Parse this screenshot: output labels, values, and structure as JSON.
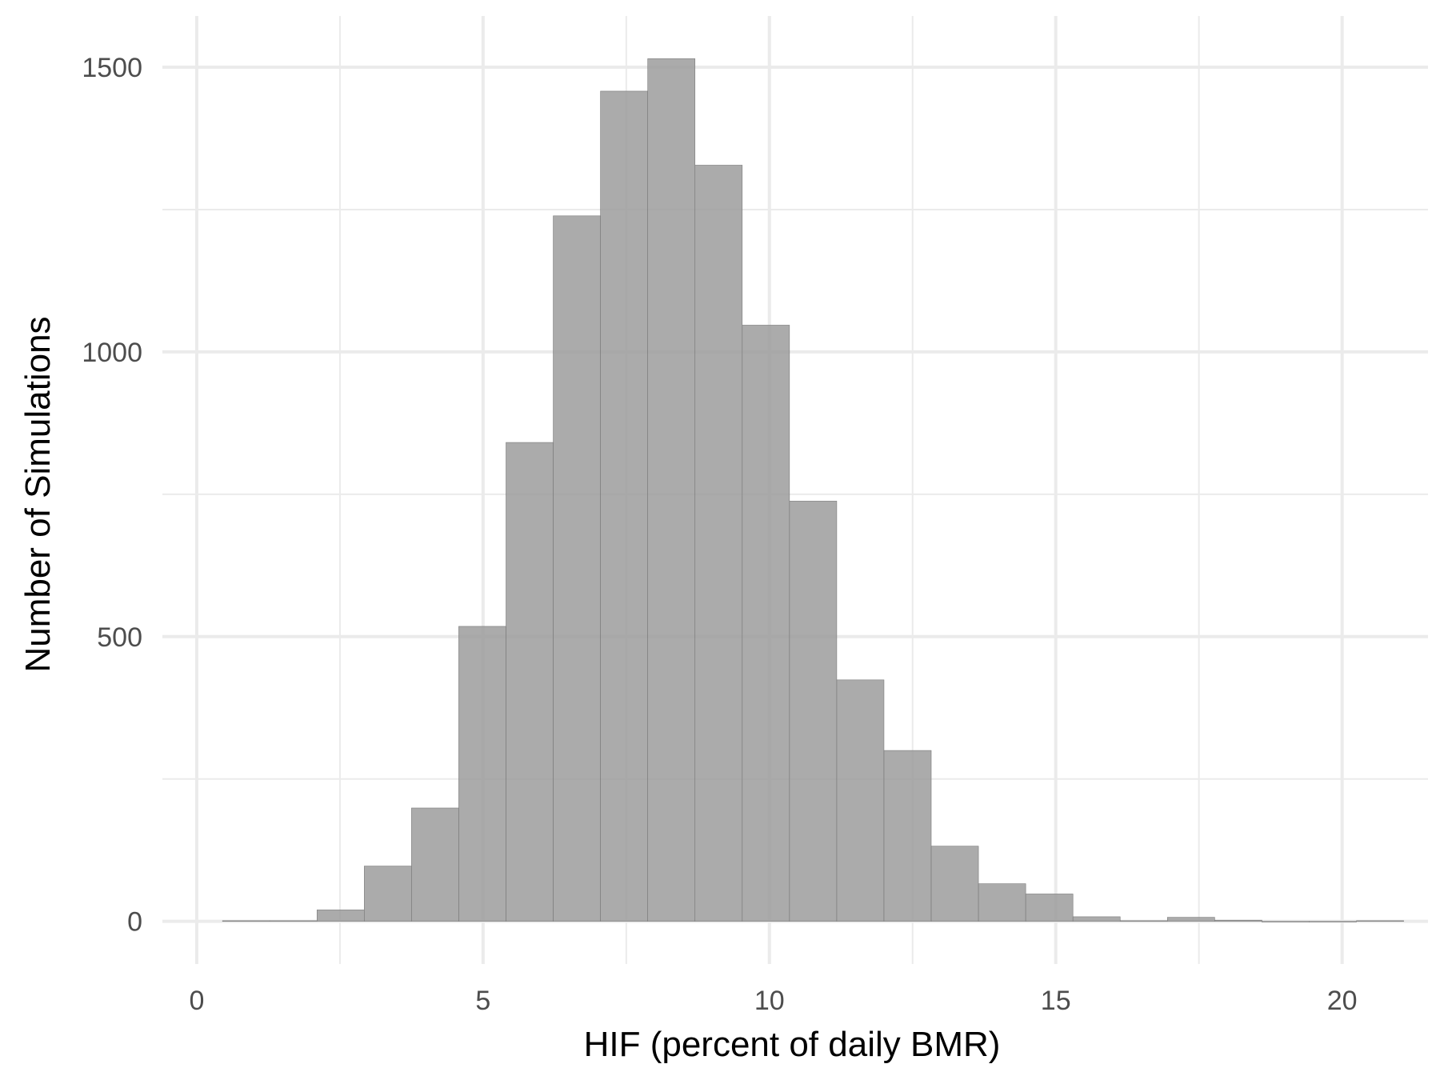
{
  "chart_data": {
    "type": "bar",
    "title": "",
    "xlabel": "HIF (percent of daily BMR)",
    "ylabel": "Number of Simulations",
    "xlim": [
      -0.6,
      21.5
    ],
    "ylim": [
      -75,
      1590
    ],
    "x_ticks": [
      0,
      5,
      10,
      15,
      20
    ],
    "x_minor_ticks": [
      2.5,
      7.5,
      12.5,
      17.5
    ],
    "y_ticks": [
      0,
      500,
      1000,
      1500
    ],
    "y_minor_ticks": [
      250,
      750,
      1250
    ],
    "grid": true,
    "bin_width": 0.825,
    "bins": [
      {
        "x0": 0.45,
        "x1": 1.275,
        "count": 1
      },
      {
        "x0": 1.275,
        "x1": 2.1,
        "count": 1
      },
      {
        "x0": 2.1,
        "x1": 2.925,
        "count": 20
      },
      {
        "x0": 2.925,
        "x1": 3.75,
        "count": 97
      },
      {
        "x0": 3.75,
        "x1": 4.575,
        "count": 199
      },
      {
        "x0": 4.575,
        "x1": 5.4,
        "count": 518
      },
      {
        "x0": 5.4,
        "x1": 6.225,
        "count": 841
      },
      {
        "x0": 6.225,
        "x1": 7.05,
        "count": 1239
      },
      {
        "x0": 7.05,
        "x1": 7.875,
        "count": 1458
      },
      {
        "x0": 7.875,
        "x1": 8.7,
        "count": 1515
      },
      {
        "x0": 8.7,
        "x1": 9.525,
        "count": 1328
      },
      {
        "x0": 9.525,
        "x1": 10.35,
        "count": 1047
      },
      {
        "x0": 10.35,
        "x1": 11.175,
        "count": 738
      },
      {
        "x0": 11.175,
        "x1": 12.0,
        "count": 424
      },
      {
        "x0": 12.0,
        "x1": 12.825,
        "count": 300
      },
      {
        "x0": 12.825,
        "x1": 13.65,
        "count": 132
      },
      {
        "x0": 13.65,
        "x1": 14.475,
        "count": 66
      },
      {
        "x0": 14.475,
        "x1": 15.3,
        "count": 48
      },
      {
        "x0": 15.3,
        "x1": 16.125,
        "count": 8
      },
      {
        "x0": 16.125,
        "x1": 16.95,
        "count": 1
      },
      {
        "x0": 16.95,
        "x1": 17.775,
        "count": 7
      },
      {
        "x0": 17.775,
        "x1": 18.6,
        "count": 2
      },
      {
        "x0": 18.6,
        "x1": 19.425,
        "count": 0
      },
      {
        "x0": 19.425,
        "x1": 20.25,
        "count": 0
      },
      {
        "x0": 20.25,
        "x1": 21.075,
        "count": 1
      }
    ],
    "colors": {
      "bar_fill": "#999999",
      "bar_fill_opacity": 0.82,
      "bar_stroke": "#7a7a7a",
      "grid_major": "#ebebeb",
      "grid_minor": "#ebebeb",
      "tick_text": "#4d4d4d",
      "axis_title": "#000000"
    }
  }
}
